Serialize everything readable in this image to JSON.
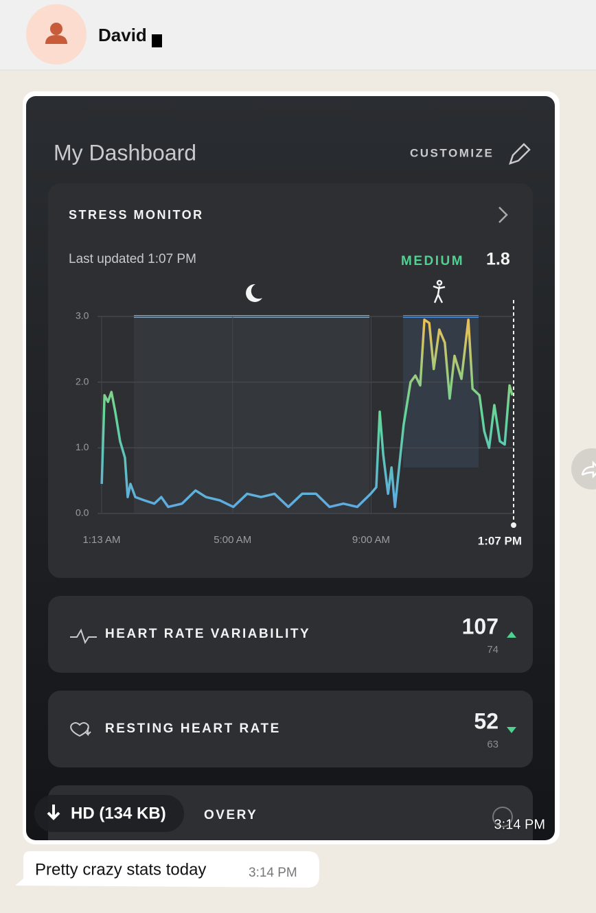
{
  "header": {
    "contact_name": "David"
  },
  "dashboard": {
    "title": "My Dashboard",
    "customize": "CUSTOMIZE",
    "stress_card": {
      "title": "STRESS MONITOR",
      "last_updated": "Last updated 1:07 PM",
      "level": "MEDIUM",
      "score": "1.8"
    },
    "metrics": [
      {
        "label": "HEART RATE VARIABILITY",
        "value": "107",
        "baseline": "74",
        "trend": "up"
      },
      {
        "label": "RESTING HEART RATE",
        "value": "52",
        "baseline": "63",
        "trend": "down"
      },
      {
        "label": "OVERY"
      }
    ]
  },
  "chart_data": {
    "type": "line",
    "x": [
      1.22,
      1.3,
      1.4,
      1.5,
      1.61,
      1.75,
      1.89,
      1.97,
      2.05,
      2.19,
      2.45,
      2.74,
      2.94,
      3.14,
      3.54,
      3.93,
      4.23,
      4.63,
      5.02,
      5.42,
      5.82,
      6.21,
      6.61,
      7.01,
      7.41,
      7.8,
      8.2,
      8.6,
      8.99,
      9.15,
      9.25,
      9.35,
      9.49,
      9.59,
      9.69,
      9.79,
      9.94,
      10.14,
      10.28,
      10.42,
      10.54,
      10.68,
      10.81,
      10.97,
      11.13,
      11.27,
      11.41,
      11.61,
      11.81,
      11.93,
      12.13,
      12.27,
      12.41,
      12.56,
      12.72,
      12.86,
      13.0,
      13.08
    ],
    "values": [
      0.45,
      1.8,
      1.7,
      1.85,
      1.55,
      1.1,
      0.85,
      0.25,
      0.45,
      0.25,
      0.2,
      0.15,
      0.25,
      0.1,
      0.15,
      0.35,
      0.25,
      0.2,
      0.1,
      0.3,
      0.25,
      0.3,
      0.1,
      0.3,
      0.3,
      0.1,
      0.15,
      0.1,
      0.3,
      0.4,
      1.55,
      0.9,
      0.3,
      0.7,
      0.1,
      0.6,
      1.35,
      2.0,
      2.1,
      1.95,
      2.95,
      2.9,
      2.2,
      2.8,
      2.6,
      1.75,
      2.4,
      2.05,
      2.95,
      1.9,
      1.8,
      1.25,
      1.0,
      1.65,
      1.1,
      1.05,
      1.95,
      1.8
    ],
    "colors": [
      "#5ea8e8",
      "#62d69a",
      "#f2bd55"
    ],
    "xlim": [
      1.2167,
      13.1167
    ],
    "xticks": [
      {
        "value": 1.2167,
        "label": "1:13 AM"
      },
      {
        "value": 5,
        "label": "5:00 AM"
      },
      {
        "value": 9,
        "label": "9:00 AM"
      },
      {
        "value": 13.1167,
        "label": "1:07 PM"
      }
    ],
    "ylim": [
      0,
      3
    ],
    "yticks": [
      {
        "value": 0,
        "label": "0.0"
      },
      {
        "value": 1,
        "label": "1.0"
      },
      {
        "value": 2,
        "label": "2.0"
      },
      {
        "value": 3,
        "label": "3.0"
      }
    ],
    "grid": true
  },
  "media": {
    "download": "HD (134 KB)",
    "time": "3:14 PM"
  },
  "message": {
    "text": "Pretty crazy stats today",
    "time": "3:14 PM"
  }
}
